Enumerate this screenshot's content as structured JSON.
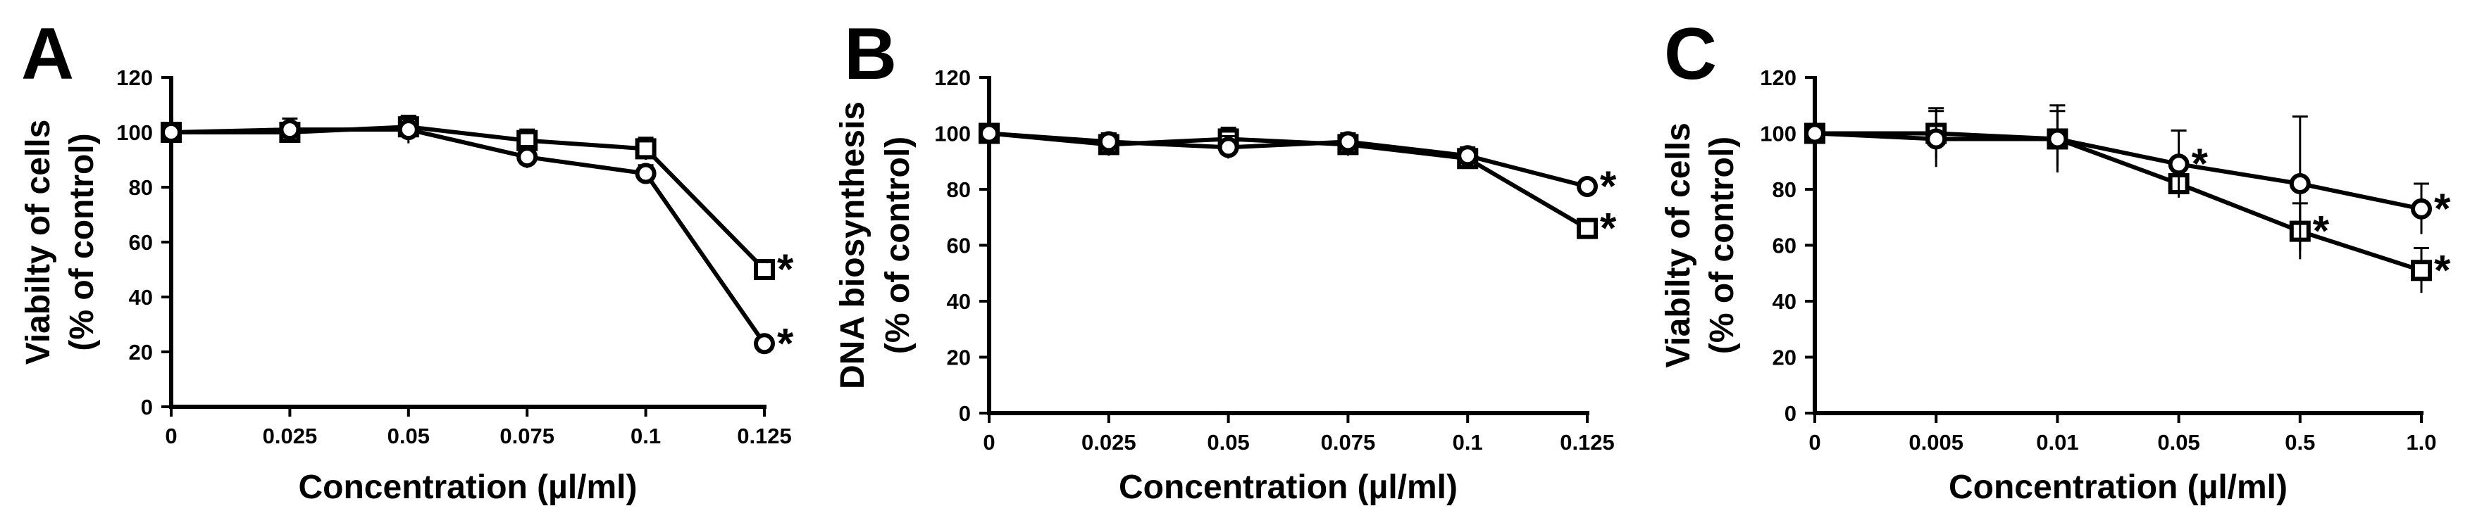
{
  "chart_data": [
    {
      "panel": "A",
      "type": "line",
      "categories": [
        "0",
        "0.025",
        "0.05",
        "0.075",
        "0.1",
        "0.125"
      ],
      "ylabel": [
        "Viabilty of cells",
        "(% of control)"
      ],
      "xlabel": "Concentration (µl/ml)",
      "ylim": [
        0,
        120
      ],
      "yticks": [
        "0",
        "20",
        "40",
        "60",
        "80",
        "100",
        "120"
      ],
      "series": [
        {
          "marker": "square",
          "values": [
            100,
            100,
            102,
            97,
            94,
            50
          ],
          "errors": [
            0,
            3,
            4,
            4,
            4,
            0
          ],
          "sig": [
            false,
            false,
            false,
            false,
            false,
            true
          ]
        },
        {
          "marker": "circle",
          "values": [
            100,
            101,
            101,
            91,
            85,
            23
          ],
          "errors": [
            0,
            4,
            5,
            4,
            3,
            0
          ],
          "sig": [
            false,
            false,
            false,
            false,
            false,
            true
          ]
        }
      ],
      "grid": false,
      "significance_mark": "*"
    },
    {
      "panel": "B",
      "type": "line",
      "categories": [
        "0",
        "0.025",
        "0.05",
        "0.075",
        "0.1",
        "0.125"
      ],
      "ylabel": [
        "DNA biosynthesis",
        "(% of control)"
      ],
      "xlabel": "Concentration (µl/ml)",
      "ylim": [
        0,
        120
      ],
      "yticks": [
        "0",
        "20",
        "40",
        "60",
        "80",
        "100",
        "120"
      ],
      "series": [
        {
          "marker": "square",
          "values": [
            100,
            96,
            98,
            96,
            91,
            66
          ],
          "errors": [
            0,
            4,
            4,
            4,
            3,
            0
          ],
          "sig": [
            false,
            false,
            false,
            false,
            false,
            true
          ]
        },
        {
          "marker": "circle",
          "values": [
            100,
            97,
            95,
            97,
            92,
            81
          ],
          "errors": [
            0,
            3,
            4,
            3,
            3,
            0
          ],
          "sig": [
            false,
            false,
            false,
            false,
            false,
            true
          ]
        }
      ],
      "grid": false,
      "significance_mark": "*"
    },
    {
      "panel": "C",
      "type": "line",
      "categories": [
        "0",
        "0.005",
        "0.01",
        "0.05",
        "0.5",
        "1.0"
      ],
      "ylabel": [
        "Viabilty of cells",
        "(% of control)"
      ],
      "xlabel": "Concentration (µl/ml)",
      "ylim": [
        0,
        120
      ],
      "yticks": [
        "0",
        "20",
        "40",
        "60",
        "80",
        "100",
        "120"
      ],
      "series": [
        {
          "marker": "square",
          "values": [
            100,
            100,
            98,
            82,
            65,
            51
          ],
          "errors": [
            0,
            9,
            12,
            0,
            10,
            8
          ],
          "sig": [
            false,
            false,
            false,
            false,
            true,
            true
          ]
        },
        {
          "marker": "circle",
          "values": [
            100,
            98,
            98,
            89,
            82,
            73
          ],
          "errors": [
            0,
            10,
            10,
            12,
            24,
            9
          ],
          "sig": [
            false,
            false,
            false,
            true,
            false,
            true
          ]
        }
      ],
      "grid": false,
      "significance_mark": "*"
    }
  ]
}
